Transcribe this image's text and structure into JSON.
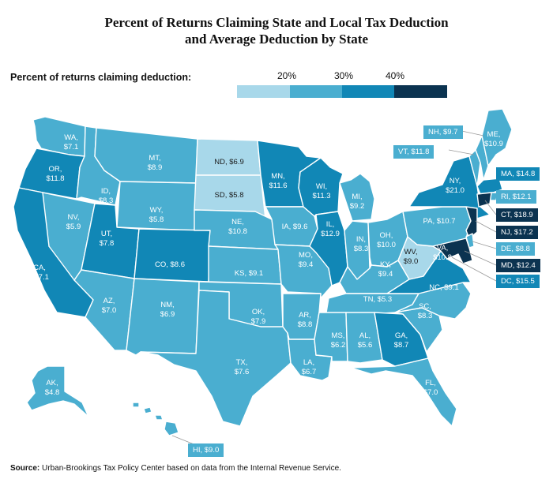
{
  "title": [
    "Percent of Returns Claiming State and Local Tax Deduction",
    "and Average Deduction by State"
  ],
  "legend": {
    "label": "Percent of returns claiming deduction:",
    "ticks": [
      "20%",
      "30%",
      "40%"
    ],
    "colors": [
      "#a8d8ea",
      "#4aaed0",
      "#1187b6",
      "#0b3350"
    ]
  },
  "states": [
    {
      "abbr": "WA",
      "label": "WA,",
      "value": "$7.1",
      "cls": 1
    },
    {
      "abbr": "OR",
      "label": "OR,",
      "value": "$11.8",
      "cls": 2
    },
    {
      "abbr": "CA",
      "label": "CA,",
      "value": "$17.1",
      "cls": 2
    },
    {
      "abbr": "ID",
      "label": "ID,",
      "value": "$8.3",
      "cls": 1
    },
    {
      "abbr": "NV",
      "label": "NV,",
      "value": "$5.9",
      "cls": 1
    },
    {
      "abbr": "MT",
      "label": "MT,",
      "value": "$8.9",
      "cls": 1
    },
    {
      "abbr": "WY",
      "label": "WY,",
      "value": "$5.8",
      "cls": 1
    },
    {
      "abbr": "UT",
      "label": "UT,",
      "value": "$7.8",
      "cls": 2
    },
    {
      "abbr": "AZ",
      "label": "AZ,",
      "value": "$7.0",
      "cls": 1
    },
    {
      "abbr": "CO",
      "label": "CO, $8.6",
      "value": "",
      "cls": 2
    },
    {
      "abbr": "NM",
      "label": "NM,",
      "value": "$6.9",
      "cls": 1
    },
    {
      "abbr": "ND",
      "label": "ND, $6.9",
      "value": "",
      "cls": 0
    },
    {
      "abbr": "SD",
      "label": "SD, $5.8",
      "value": "",
      "cls": 0
    },
    {
      "abbr": "NE",
      "label": "NE,",
      "value": "$10.8",
      "cls": 1
    },
    {
      "abbr": "KS",
      "label": "KS, $9.1",
      "value": "",
      "cls": 1
    },
    {
      "abbr": "OK",
      "label": "OK,",
      "value": "$7.9",
      "cls": 1
    },
    {
      "abbr": "TX",
      "label": "TX,",
      "value": "$7.6",
      "cls": 1
    },
    {
      "abbr": "MN",
      "label": "MN,",
      "value": "$11.6",
      "cls": 2
    },
    {
      "abbr": "IA",
      "label": "IA, $9.6",
      "value": "",
      "cls": 1
    },
    {
      "abbr": "MO",
      "label": "MO,",
      "value": "$9.4",
      "cls": 1
    },
    {
      "abbr": "AR",
      "label": "AR,",
      "value": "$8.8",
      "cls": 1
    },
    {
      "abbr": "LA",
      "label": "LA,",
      "value": "$6.7",
      "cls": 1
    },
    {
      "abbr": "WI",
      "label": "WI,",
      "value": "$11.3",
      "cls": 2
    },
    {
      "abbr": "IL",
      "label": "IL,",
      "value": "$12.9",
      "cls": 2
    },
    {
      "abbr": "MI",
      "label": "MI,",
      "value": "$9.2",
      "cls": 1
    },
    {
      "abbr": "IN",
      "label": "IN,",
      "value": "$8.3",
      "cls": 1
    },
    {
      "abbr": "OH",
      "label": "OH,",
      "value": "$10.0",
      "cls": 1
    },
    {
      "abbr": "KY",
      "label": "KY,",
      "value": "$9.4",
      "cls": 1
    },
    {
      "abbr": "TN",
      "label": "TN, $5.3",
      "value": "",
      "cls": 1
    },
    {
      "abbr": "MS",
      "label": "MS,",
      "value": "$6.2",
      "cls": 1
    },
    {
      "abbr": "AL",
      "label": "AL,",
      "value": "$5.6",
      "cls": 1
    },
    {
      "abbr": "GA",
      "label": "GA,",
      "value": "$8.7",
      "cls": 2
    },
    {
      "abbr": "FL",
      "label": "FL,",
      "value": "$7.0",
      "cls": 1
    },
    {
      "abbr": "SC",
      "label": "SC,",
      "value": "$8.3",
      "cls": 1
    },
    {
      "abbr": "NC",
      "label": "NC, $9.1",
      "value": "",
      "cls": 1
    },
    {
      "abbr": "VA",
      "label": "VA,",
      "value": "$10.8",
      "cls": 2
    },
    {
      "abbr": "WV",
      "label": "WV,",
      "value": "$9.0",
      "cls": 0
    },
    {
      "abbr": "PA",
      "label": "PA, $10.7",
      "value": "",
      "cls": 1
    },
    {
      "abbr": "NY",
      "label": "NY,",
      "value": "$21.0",
      "cls": 2
    },
    {
      "abbr": "ME",
      "label": "ME,",
      "value": "$10.9",
      "cls": 1
    },
    {
      "abbr": "AK",
      "label": "AK,",
      "value": "$4.8",
      "cls": 1
    },
    {
      "abbr": "VT",
      "label": "",
      "value": "",
      "cls": 1
    },
    {
      "abbr": "NH",
      "label": "",
      "value": "",
      "cls": 1
    },
    {
      "abbr": "MA",
      "label": "",
      "value": "",
      "cls": 2
    },
    {
      "abbr": "RI",
      "label": "",
      "value": "",
      "cls": 1
    },
    {
      "abbr": "CT",
      "label": "",
      "value": "",
      "cls": 3
    },
    {
      "abbr": "NJ",
      "label": "",
      "value": "",
      "cls": 3
    },
    {
      "abbr": "DE",
      "label": "",
      "value": "",
      "cls": 1
    },
    {
      "abbr": "MD",
      "label": "",
      "value": "",
      "cls": 3
    },
    {
      "abbr": "HI",
      "label": "",
      "value": "",
      "cls": 1
    }
  ],
  "callouts": [
    {
      "abbr": "NH",
      "text": "NH, $9.7",
      "cls": 1
    },
    {
      "abbr": "VT",
      "text": "VT, $11.8",
      "cls": 1
    },
    {
      "abbr": "MA",
      "text": "MA, $14.8",
      "cls": 2
    },
    {
      "abbr": "RI",
      "text": "RI, $12.1",
      "cls": 1
    },
    {
      "abbr": "CT",
      "text": "CT, $18.9",
      "cls": 3
    },
    {
      "abbr": "NJ",
      "text": "NJ, $17.2",
      "cls": 3
    },
    {
      "abbr": "DE",
      "text": "DE, $8.8",
      "cls": 1
    },
    {
      "abbr": "MD",
      "text": "MD, $12.4",
      "cls": 3
    },
    {
      "abbr": "DC",
      "text": "DC, $15.5",
      "cls": 2
    },
    {
      "abbr": "HI",
      "text": "HI, $9.0",
      "cls": 1
    }
  ],
  "source": {
    "bold": "Source:",
    "text": " Urban-Brookings Tax Policy Center based on data from the Internal Revenue Service."
  }
}
